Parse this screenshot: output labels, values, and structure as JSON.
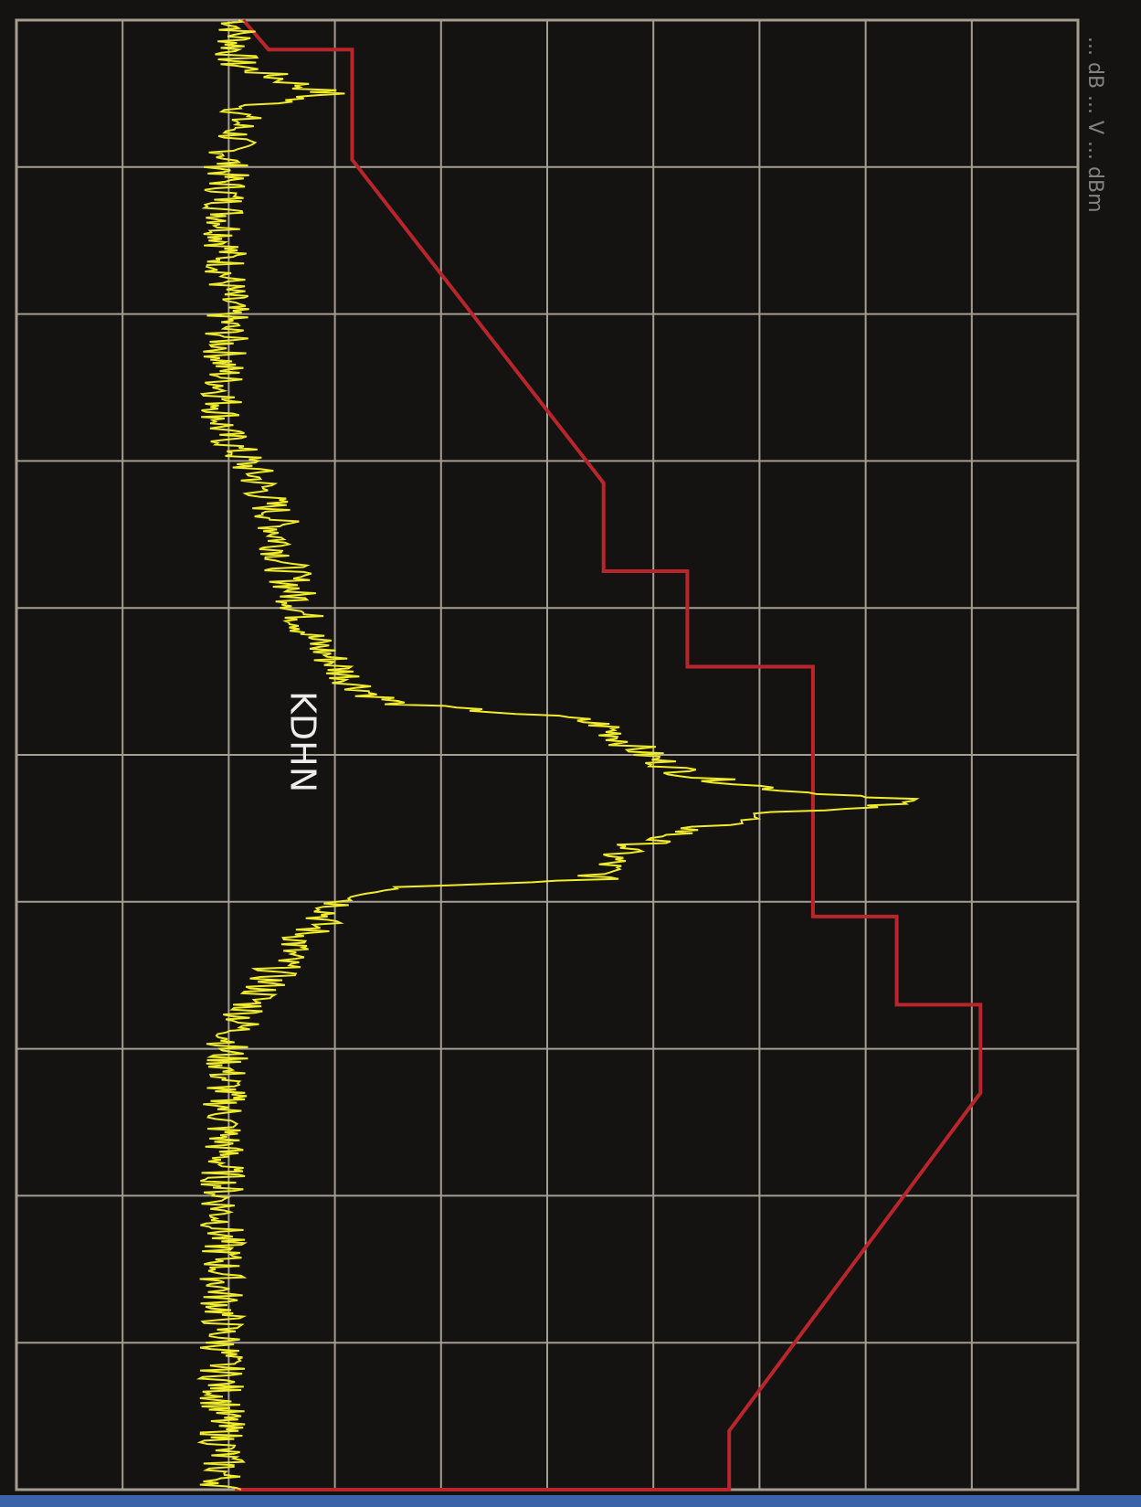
{
  "chart_data": {
    "type": "line",
    "orientation": "rotated-90-clockwise",
    "grid": true,
    "grid_divisions": {
      "frequency": 10,
      "amplitude": 10
    },
    "colors": {
      "background": "#151212",
      "grid": "#a49d90",
      "trace": "#f0ec2c",
      "mask": "#b8262b"
    },
    "annotation": "KDHN",
    "edge_text": "... dB ... V ... dBm",
    "mask": {
      "name": "",
      "points": [
        [
          0.0,
          0.2
        ],
        [
          0.2,
          0.5
        ],
        [
          0.2,
          1.5
        ],
        [
          0.95,
          1.5
        ],
        [
          3.15,
          4.5
        ],
        [
          3.75,
          4.5
        ],
        [
          3.75,
          5.5
        ],
        [
          4.4,
          5.5
        ],
        [
          4.4,
          7.0
        ],
        [
          6.1,
          7.0
        ],
        [
          6.1,
          8.0
        ],
        [
          6.7,
          8.0
        ],
        [
          6.7,
          9.0
        ],
        [
          7.3,
          9.0
        ],
        [
          9.6,
          6.0
        ],
        [
          10.0,
          6.0
        ],
        [
          10.0,
          1.5
        ],
        [
          10.0,
          0.1
        ]
      ]
    },
    "trace": {
      "name": "",
      "noise_floor": 0.1,
      "points": [
        [
          0.0,
          0.15
        ],
        [
          0.3,
          0.1
        ],
        [
          0.5,
          1.2
        ],
        [
          0.6,
          0.2
        ],
        [
          1.0,
          0.0
        ],
        [
          2.0,
          0.0
        ],
        [
          2.8,
          -0.05
        ],
        [
          3.1,
          0.35
        ],
        [
          3.4,
          0.6
        ],
        [
          3.7,
          0.7
        ],
        [
          4.2,
          1.0
        ],
        [
          4.5,
          1.5
        ],
        [
          4.6,
          1.8
        ],
        [
          4.65,
          2.0
        ],
        [
          4.75,
          4.1
        ],
        [
          4.8,
          4.5
        ],
        [
          5.0,
          5.0
        ],
        [
          5.15,
          5.6
        ],
        [
          5.25,
          6.8
        ],
        [
          5.3,
          8.2
        ],
        [
          5.35,
          7.7
        ],
        [
          5.4,
          6.5
        ],
        [
          5.5,
          5.6
        ],
        [
          5.65,
          4.7
        ],
        [
          5.85,
          4.4
        ],
        [
          5.9,
          2.2
        ],
        [
          6.0,
          1.4
        ],
        [
          6.3,
          0.8
        ],
        [
          6.7,
          0.3
        ],
        [
          7.0,
          0.0
        ],
        [
          8.0,
          -0.05
        ],
        [
          10.0,
          -0.05
        ]
      ]
    }
  }
}
